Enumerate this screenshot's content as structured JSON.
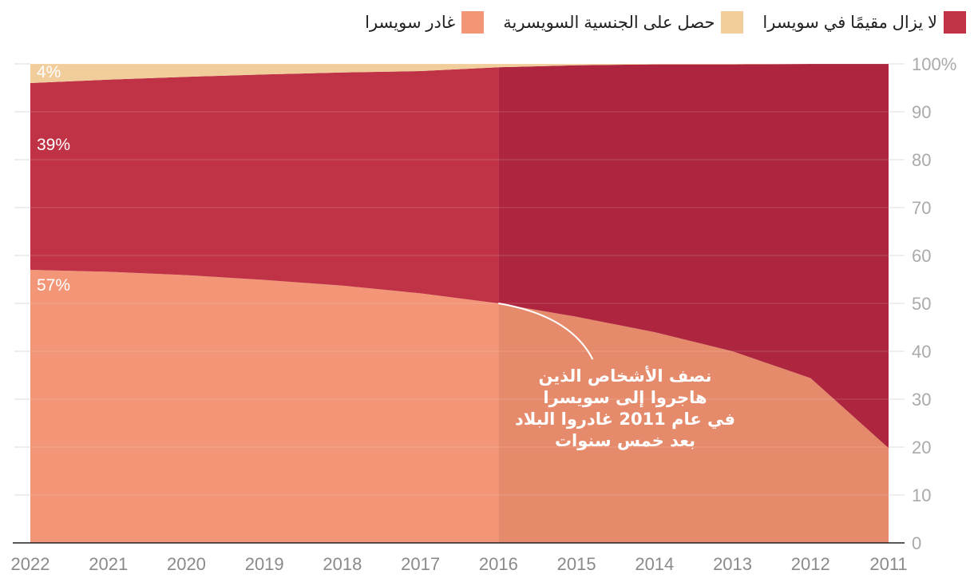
{
  "legend": [
    {
      "label": "لا يزال مقيمًا في سويسرا",
      "color": "#c03347"
    },
    {
      "label": "حصل على الجنسية السويسرية",
      "color": "#f2cd9c"
    },
    {
      "label": "غادر سويسرا",
      "color": "#f29677"
    }
  ],
  "chart_data": {
    "type": "area",
    "stacked": true,
    "title": "",
    "xlabel": "",
    "ylabel": "",
    "x": [
      2022,
      2021,
      2020,
      2019,
      2018,
      2017,
      2016,
      2015,
      2014,
      2013,
      2012,
      2011
    ],
    "x_tick_labels": [
      "2022",
      "2021",
      "2020",
      "2019",
      "2018",
      "2017",
      "2016",
      "2015",
      "2014",
      "2013",
      "2012",
      "2011"
    ],
    "ylim": [
      0,
      100
    ],
    "y_ticks": [
      0,
      10,
      20,
      30,
      40,
      50,
      60,
      70,
      80,
      90,
      100
    ],
    "y_tick_labels": [
      "0",
      "10",
      "20",
      "30",
      "40",
      "50",
      "60",
      "70",
      "80",
      "90",
      "100%"
    ],
    "series": [
      {
        "name": "غادر سويسرا",
        "color": "#f29677",
        "highlight_color": "#e68a6c",
        "values": [
          57,
          56.6,
          55.9,
          54.9,
          53.7,
          52.1,
          50,
          47.2,
          44,
          40,
          34.4,
          19.8
        ]
      },
      {
        "name": "لا يزال مقيمًا في سويسرا",
        "color": "#c03347",
        "highlight_color": "#ad253e",
        "values": [
          39,
          40.1,
          41.4,
          42.9,
          44.5,
          46.4,
          49.3,
          52.5,
          55.9,
          59.9,
          65.6,
          80.2
        ]
      },
      {
        "name": "حصل على الجنسية السويسرية",
        "color": "#f2cd9c",
        "highlight_color": "#f2cd9c",
        "values": [
          4,
          3.3,
          2.7,
          2.2,
          1.8,
          1.5,
          0.7,
          0.3,
          0.1,
          0.1,
          0,
          0
        ]
      }
    ],
    "highlight_from": 2016,
    "data_labels": [
      {
        "text": "57%",
        "series": 0,
        "x": 2022
      },
      {
        "text": "39%",
        "series": 1,
        "x": 2022
      },
      {
        "text": "4%",
        "series": 2,
        "x": 2022
      }
    ],
    "annotation": {
      "lines": [
        "نصف الأشخاص الذين",
        "هاجروا إلى سويسرا",
        "في عام 2011 غادروا البلاد",
        "بعد خمس سنوات"
      ],
      "points_to": {
        "x": 2016,
        "y": 50
      }
    },
    "legend_position": "top-right",
    "grid": true
  }
}
